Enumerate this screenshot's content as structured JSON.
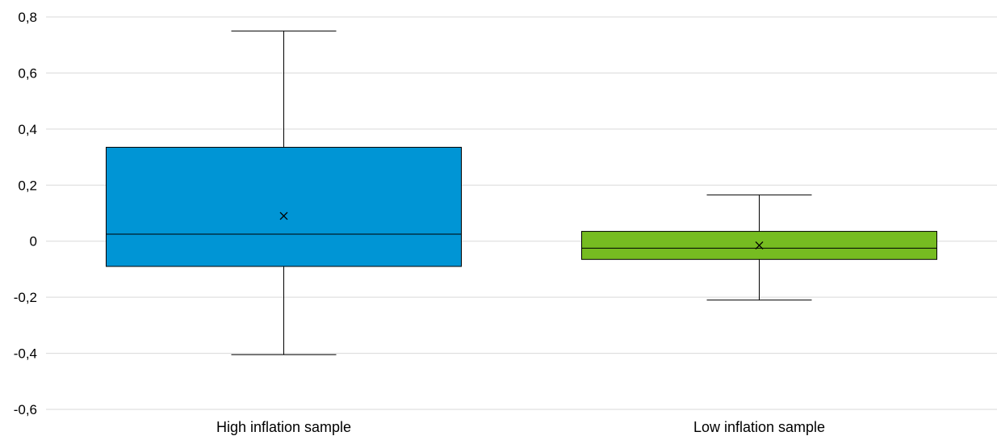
{
  "chart_data": {
    "type": "box",
    "title": "",
    "xlabel": "",
    "ylabel": "",
    "ylim": [
      -0.6,
      0.8
    ],
    "y_ticks": [
      -0.6,
      -0.4,
      -0.2,
      0,
      0.2,
      0.4,
      0.6,
      0.8
    ],
    "y_tick_labels": [
      "-0,6",
      "-0,4",
      "-0,2",
      "0",
      "0,2",
      "0,4",
      "0,6",
      "0,8"
    ],
    "grid": true,
    "legend": "none",
    "categories": [
      "High inflation sample",
      "Low inflation sample"
    ],
    "boxes": [
      {
        "category": "High inflation sample",
        "whisker_low": -0.405,
        "q1": -0.09,
        "median": 0.025,
        "q3": 0.335,
        "whisker_high": 0.75,
        "mean": 0.09,
        "color": "#0095d5"
      },
      {
        "category": "Low inflation sample",
        "whisker_low": -0.21,
        "q1": -0.065,
        "median": -0.025,
        "q3": 0.035,
        "whisker_high": 0.165,
        "mean": -0.015,
        "color": "#76bc21"
      }
    ]
  }
}
